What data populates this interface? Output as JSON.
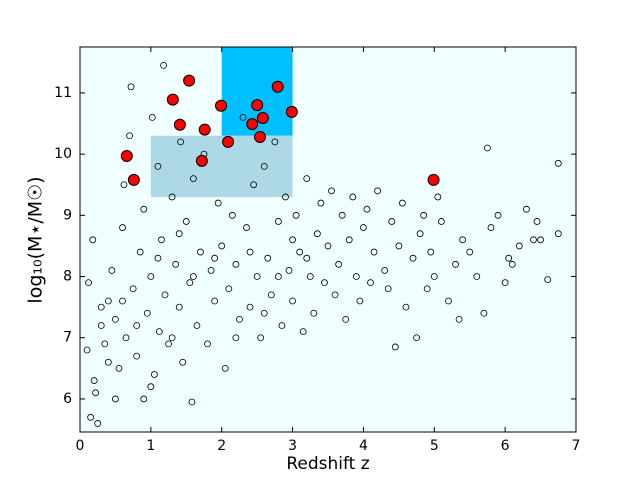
{
  "chart_data": {
    "type": "scatter",
    "xlabel": "Redshift z",
    "ylabel": "log₁₀(M⋆/M☉)",
    "xlim": [
      0,
      7
    ],
    "ylim": [
      5.46,
      11.75
    ],
    "xticks": [
      0,
      1,
      2,
      3,
      4,
      5,
      6,
      7
    ],
    "yticks": [
      6,
      7,
      8,
      9,
      10,
      11
    ],
    "background": "#f0ffff",
    "shaded_regions": [
      {
        "x": [
          2,
          3
        ],
        "y": [
          10.3,
          11.75
        ],
        "color": "#00bfff"
      },
      {
        "x": [
          1,
          3
        ],
        "y": [
          9.3,
          10.3
        ],
        "color": "#add8e6"
      }
    ],
    "series": [
      {
        "color": "#000000",
        "x": [
          0.1,
          0.15,
          0.2,
          0.25,
          0.3,
          0.12,
          0.18,
          0.22,
          0.35,
          0.4,
          0.45,
          0.5,
          0.55,
          0.6,
          0.62,
          0.65,
          0.7,
          0.72,
          0.75,
          0.8,
          0.85,
          0.9,
          0.95,
          1.0,
          1.02,
          1.05,
          1.1,
          1.12,
          1.15,
          1.18,
          1.2,
          1.25,
          1.3,
          1.35,
          1.4,
          1.42,
          1.45,
          1.5,
          1.55,
          1.58,
          1.6,
          1.65,
          1.7,
          1.75,
          1.8,
          1.85,
          1.9,
          1.95,
          2.0,
          2.05,
          2.1,
          2.15,
          2.2,
          2.25,
          2.3,
          2.35,
          2.4,
          2.45,
          2.5,
          2.55,
          2.6,
          2.65,
          2.7,
          2.75,
          2.8,
          2.85,
          2.9,
          2.95,
          3.0,
          3.05,
          3.1,
          3.15,
          3.2,
          3.25,
          3.3,
          3.35,
          3.4,
          3.45,
          3.5,
          3.55,
          3.6,
          3.65,
          3.7,
          3.75,
          3.8,
          3.85,
          3.9,
          3.95,
          4.0,
          4.05,
          4.1,
          4.15,
          4.2,
          4.3,
          4.35,
          4.4,
          4.45,
          4.5,
          4.55,
          4.6,
          4.7,
          4.75,
          4.8,
          4.85,
          4.9,
          4.95,
          5.0,
          5.05,
          5.1,
          5.2,
          5.3,
          5.35,
          5.4,
          5.5,
          5.6,
          5.7,
          5.75,
          5.8,
          5.9,
          6.0,
          6.05,
          6.1,
          6.2,
          6.3,
          6.4,
          6.45,
          6.5,
          6.6,
          6.75,
          6.75,
          0.3,
          0.5,
          0.8,
          1.0,
          1.3,
          1.6,
          1.9,
          2.2,
          2.4,
          2.6,
          3.0,
          1.1,
          0.6,
          2.8,
          3.2,
          1.4,
          0.9,
          0.4
        ],
        "values": [
          6.8,
          5.7,
          6.3,
          5.6,
          7.2,
          7.9,
          8.6,
          6.1,
          6.9,
          7.6,
          8.1,
          7.3,
          6.5,
          8.8,
          9.5,
          7.0,
          10.3,
          11.1,
          7.8,
          6.7,
          8.4,
          9.1,
          7.4,
          8.0,
          10.6,
          6.4,
          9.8,
          7.1,
          8.6,
          11.45,
          7.7,
          6.9,
          9.3,
          8.2,
          7.5,
          10.2,
          6.6,
          8.9,
          7.9,
          5.95,
          9.6,
          7.2,
          8.4,
          10.0,
          6.9,
          8.1,
          7.6,
          9.2,
          8.5,
          6.5,
          7.8,
          9.0,
          8.2,
          7.3,
          10.6,
          8.8,
          7.5,
          9.5,
          8.0,
          7.0,
          9.8,
          8.3,
          7.7,
          10.2,
          8.9,
          7.2,
          9.3,
          8.1,
          7.6,
          9.0,
          8.4,
          7.1,
          9.6,
          8.0,
          7.4,
          8.7,
          9.2,
          7.9,
          8.5,
          9.4,
          7.7,
          8.2,
          9.0,
          7.3,
          8.6,
          9.3,
          8.0,
          7.6,
          8.8,
          9.1,
          7.9,
          8.4,
          9.4,
          8.1,
          7.8,
          8.9,
          6.85,
          8.5,
          9.2,
          7.5,
          8.3,
          7.0,
          8.7,
          9.0,
          7.8,
          8.4,
          8.0,
          9.3,
          8.9,
          7.6,
          8.2,
          7.3,
          8.6,
          8.4,
          8.0,
          7.4,
          10.1,
          8.8,
          9.0,
          7.9,
          8.3,
          8.2,
          8.5,
          9.1,
          8.6,
          8.9,
          8.6,
          7.95,
          9.85,
          8.7,
          7.5,
          6.0,
          7.2,
          6.2,
          7.0,
          8.0,
          8.3,
          7.0,
          8.4,
          7.4,
          8.6,
          8.3,
          7.6,
          8.0,
          8.3,
          8.7,
          6.0,
          6.6
        ]
      },
      {
        "color": "#ff0000",
        "x": [
          0.66,
          0.76,
          1.31,
          1.54,
          1.41,
          1.76,
          1.72,
          1.99,
          2.09,
          2.5,
          2.43,
          2.58,
          2.54,
          2.79,
          2.99,
          4.99
        ],
        "values": [
          9.97,
          9.58,
          10.89,
          11.2,
          10.48,
          10.4,
          9.89,
          10.79,
          10.2,
          10.8,
          10.49,
          10.59,
          10.28,
          11.1,
          10.69,
          9.58
        ]
      }
    ]
  }
}
